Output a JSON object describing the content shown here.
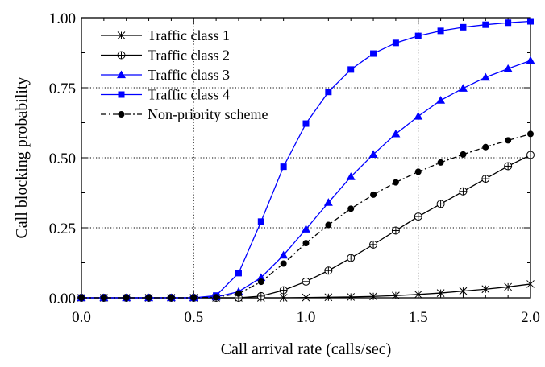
{
  "chart_data": {
    "type": "line",
    "title": "",
    "xlabel": "Call arrival rate (calls/sec)",
    "ylabel": "Call blocking probability",
    "xlim": [
      0.0,
      2.0
    ],
    "ylim": [
      0.0,
      1.0
    ],
    "x_ticks": [
      "0.0",
      "0.5",
      "1.0",
      "1.5",
      "2.0"
    ],
    "y_ticks": [
      "0.00",
      "0.25",
      "0.50",
      "0.75",
      "1.00"
    ],
    "grid": "dotted",
    "legend_position": "top-left",
    "x": [
      0.0,
      0.1,
      0.2,
      0.3,
      0.4,
      0.5,
      0.6,
      0.7,
      0.8,
      0.9,
      1.0,
      1.1,
      1.2,
      1.3,
      1.4,
      1.5,
      1.6,
      1.7,
      1.8,
      1.9,
      2.0
    ],
    "series": [
      {
        "name": "Traffic class 1",
        "color": "#000000",
        "line_style": "solid",
        "marker": "asterisk",
        "values": [
          0,
          0,
          0,
          0,
          0,
          0,
          0,
          0,
          0,
          0,
          0.001,
          0.002,
          0.003,
          0.005,
          0.008,
          0.012,
          0.017,
          0.024,
          0.031,
          0.039,
          0.049
        ]
      },
      {
        "name": "Traffic class 2",
        "color": "#000000",
        "line_style": "solid",
        "marker": "circle-plus",
        "values": [
          0,
          0,
          0,
          0,
          0,
          0,
          0,
          0,
          0.006,
          0.027,
          0.058,
          0.097,
          0.142,
          0.19,
          0.24,
          0.29,
          0.335,
          0.38,
          0.425,
          0.47,
          0.51
        ]
      },
      {
        "name": "Traffic class 3",
        "color": "#0000ff",
        "line_style": "solid",
        "marker": "triangle",
        "values": [
          0,
          0,
          0,
          0,
          0,
          0,
          0.003,
          0.022,
          0.072,
          0.152,
          0.245,
          0.34,
          0.432,
          0.512,
          0.585,
          0.648,
          0.705,
          0.748,
          0.787,
          0.818,
          0.847
        ]
      },
      {
        "name": "Traffic class 4",
        "color": "#0000ff",
        "line_style": "solid",
        "marker": "square",
        "values": [
          0,
          0,
          0,
          0,
          0,
          0,
          0.008,
          0.088,
          0.272,
          0.468,
          0.622,
          0.735,
          0.815,
          0.872,
          0.91,
          0.935,
          0.953,
          0.966,
          0.975,
          0.982,
          0.987
        ]
      },
      {
        "name": "Non-priority scheme",
        "color": "#000000",
        "line_style": "dash-dot",
        "marker": "filled-circle",
        "values": [
          0,
          0,
          0,
          0,
          0,
          0,
          0.002,
          0.015,
          0.057,
          0.122,
          0.195,
          0.26,
          0.318,
          0.368,
          0.412,
          0.45,
          0.483,
          0.512,
          0.538,
          0.562,
          0.585
        ]
      }
    ]
  }
}
